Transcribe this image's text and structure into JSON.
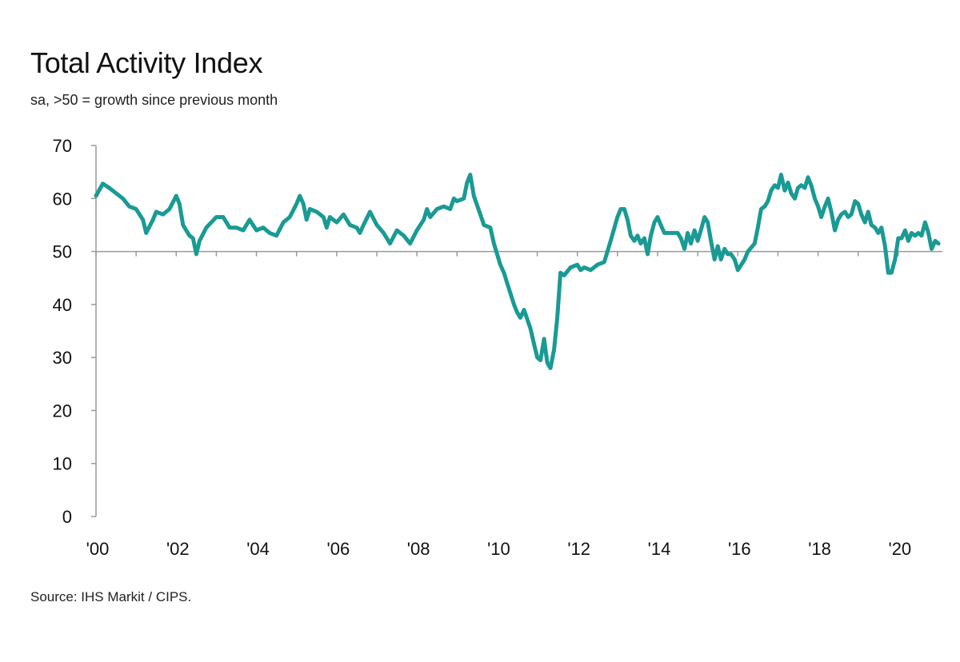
{
  "chart_data": {
    "type": "line",
    "title": "Total Activity Index",
    "subtitle": "sa, >50 = growth since previous month",
    "source": "Source: IHS Markit / CIPS.",
    "xlabel": "",
    "ylabel": "",
    "ylim": [
      0,
      70
    ],
    "xlim": [
      2000.0,
      2021.0
    ],
    "yticks": [
      0,
      10,
      20,
      30,
      40,
      50,
      60,
      70
    ],
    "xtick_values": [
      2000,
      2002,
      2004,
      2006,
      2008,
      2010,
      2012,
      2014,
      2016,
      2018,
      2020
    ],
    "xtick_labels": [
      "'00",
      "'02",
      "'04",
      "'06",
      "'08",
      "'10",
      "'12",
      "'14",
      "'16",
      "'18",
      "'20"
    ],
    "reference_line": 50,
    "grid": false,
    "line_color": "#1a9a94",
    "series": [
      {
        "points": [
          [
            2000.0,
            60.5
          ],
          [
            2000.17,
            62.8
          ],
          [
            2000.33,
            62.0
          ],
          [
            2000.5,
            61.0
          ],
          [
            2000.67,
            60.0
          ],
          [
            2000.83,
            58.5
          ],
          [
            2001.0,
            58.0
          ],
          [
            2001.17,
            56.0
          ],
          [
            2001.25,
            53.5
          ],
          [
            2001.42,
            56.0
          ],
          [
            2001.5,
            57.5
          ],
          [
            2001.67,
            57.0
          ],
          [
            2001.83,
            58.0
          ],
          [
            2002.0,
            60.5
          ],
          [
            2002.08,
            59.0
          ],
          [
            2002.17,
            55.0
          ],
          [
            2002.33,
            53.0
          ],
          [
            2002.42,
            52.5
          ],
          [
            2002.5,
            49.5
          ],
          [
            2002.58,
            52.0
          ],
          [
            2002.75,
            54.5
          ],
          [
            2003.0,
            56.5
          ],
          [
            2003.17,
            56.5
          ],
          [
            2003.33,
            54.5
          ],
          [
            2003.5,
            54.5
          ],
          [
            2003.67,
            54.0
          ],
          [
            2003.83,
            56.0
          ],
          [
            2004.0,
            54.0
          ],
          [
            2004.17,
            54.5
          ],
          [
            2004.33,
            53.5
          ],
          [
            2004.5,
            53.0
          ],
          [
            2004.67,
            55.5
          ],
          [
            2004.83,
            56.5
          ],
          [
            2005.0,
            59.0
          ],
          [
            2005.08,
            60.5
          ],
          [
            2005.17,
            59.0
          ],
          [
            2005.25,
            56.0
          ],
          [
            2005.33,
            58.0
          ],
          [
            2005.5,
            57.5
          ],
          [
            2005.67,
            56.5
          ],
          [
            2005.75,
            54.5
          ],
          [
            2005.83,
            56.5
          ],
          [
            2006.0,
            55.5
          ],
          [
            2006.17,
            57.0
          ],
          [
            2006.33,
            55.0
          ],
          [
            2006.5,
            54.5
          ],
          [
            2006.58,
            53.5
          ],
          [
            2006.67,
            55.0
          ],
          [
            2006.83,
            57.5
          ],
          [
            2007.0,
            55.0
          ],
          [
            2007.17,
            53.5
          ],
          [
            2007.33,
            51.5
          ],
          [
            2007.5,
            54.0
          ],
          [
            2007.67,
            53.0
          ],
          [
            2007.83,
            51.5
          ],
          [
            2008.0,
            54.0
          ],
          [
            2008.17,
            56.0
          ],
          [
            2008.25,
            58.0
          ],
          [
            2008.33,
            56.5
          ],
          [
            2008.5,
            58.0
          ],
          [
            2008.67,
            58.5
          ],
          [
            2008.83,
            58.0
          ],
          [
            2008.92,
            60.0
          ],
          [
            2009.0,
            59.5
          ],
          [
            2009.17,
            60.0
          ],
          [
            2009.25,
            63.0
          ],
          [
            2009.33,
            64.5
          ],
          [
            2009.42,
            60.5
          ],
          [
            2009.58,
            57.0
          ],
          [
            2009.67,
            55.0
          ],
          [
            2009.83,
            54.5
          ],
          [
            2009.92,
            51.5
          ],
          [
            2010.08,
            47.5
          ],
          [
            2010.17,
            46.0
          ],
          [
            2010.25,
            44.0
          ],
          [
            2010.42,
            40.0
          ],
          [
            2010.5,
            38.5
          ],
          [
            2010.58,
            37.5
          ],
          [
            2010.67,
            39.0
          ],
          [
            2010.83,
            35.5
          ],
          [
            2010.92,
            32.5
          ],
          [
            2011.0,
            30.0
          ],
          [
            2011.08,
            29.5
          ],
          [
            2011.17,
            33.5
          ],
          [
            2011.25,
            29.0
          ],
          [
            2011.33,
            28.0
          ],
          [
            2011.42,
            31.5
          ],
          [
            2011.5,
            37.5
          ],
          [
            2011.58,
            46.0
          ],
          [
            2011.67,
            45.5
          ],
          [
            2011.83,
            47.0
          ],
          [
            2012.0,
            47.5
          ],
          [
            2012.08,
            46.5
          ],
          [
            2012.17,
            47.0
          ],
          [
            2012.33,
            46.5
          ],
          [
            2012.5,
            47.5
          ],
          [
            2012.67,
            48.0
          ],
          [
            2012.83,
            52.0
          ],
          [
            2013.0,
            56.5
          ],
          [
            2013.08,
            58.0
          ],
          [
            2013.17,
            58.0
          ],
          [
            2013.25,
            56.0
          ],
          [
            2013.33,
            53.0
          ],
          [
            2013.42,
            52.0
          ],
          [
            2013.5,
            53.0
          ],
          [
            2013.58,
            51.5
          ],
          [
            2013.67,
            52.5
          ],
          [
            2013.75,
            49.5
          ],
          [
            2013.83,
            53.0
          ],
          [
            2013.92,
            55.5
          ],
          [
            2014.0,
            56.5
          ],
          [
            2014.08,
            55.0
          ],
          [
            2014.17,
            53.5
          ],
          [
            2014.33,
            53.5
          ],
          [
            2014.5,
            53.5
          ],
          [
            2014.58,
            52.5
          ],
          [
            2014.67,
            50.5
          ],
          [
            2014.75,
            53.5
          ],
          [
            2014.83,
            51.5
          ],
          [
            2014.92,
            54.0
          ],
          [
            2015.0,
            52.0
          ],
          [
            2015.08,
            54.0
          ],
          [
            2015.17,
            56.5
          ],
          [
            2015.25,
            55.5
          ],
          [
            2015.33,
            52.0
          ],
          [
            2015.42,
            48.5
          ],
          [
            2015.5,
            51.0
          ],
          [
            2015.58,
            48.5
          ],
          [
            2015.67,
            50.5
          ],
          [
            2015.75,
            49.5
          ],
          [
            2015.83,
            49.5
          ],
          [
            2015.92,
            48.5
          ],
          [
            2016.0,
            46.5
          ],
          [
            2016.17,
            48.5
          ],
          [
            2016.25,
            50.0
          ],
          [
            2016.42,
            51.5
          ],
          [
            2016.5,
            54.5
          ],
          [
            2016.58,
            58.0
          ],
          [
            2016.67,
            58.5
          ],
          [
            2016.75,
            59.5
          ],
          [
            2016.83,
            61.5
          ],
          [
            2016.92,
            62.5
          ],
          [
            2017.0,
            62.0
          ],
          [
            2017.08,
            64.5
          ],
          [
            2017.17,
            61.5
          ],
          [
            2017.25,
            63.0
          ],
          [
            2017.33,
            61.0
          ],
          [
            2017.42,
            60.0
          ],
          [
            2017.5,
            62.0
          ],
          [
            2017.58,
            62.5
          ],
          [
            2017.67,
            62.0
          ],
          [
            2017.75,
            64.0
          ],
          [
            2017.83,
            62.5
          ],
          [
            2017.92,
            60.0
          ],
          [
            2018.0,
            58.5
          ],
          [
            2018.08,
            56.5
          ],
          [
            2018.17,
            58.5
          ],
          [
            2018.25,
            60.0
          ],
          [
            2018.33,
            57.5
          ],
          [
            2018.42,
            54.0
          ],
          [
            2018.5,
            56.0
          ],
          [
            2018.58,
            57.0
          ],
          [
            2018.67,
            57.5
          ],
          [
            2018.75,
            56.5
          ],
          [
            2018.83,
            57.0
          ],
          [
            2018.92,
            59.5
          ],
          [
            2019.0,
            59.0
          ],
          [
            2019.08,
            57.0
          ],
          [
            2019.17,
            55.5
          ],
          [
            2019.25,
            57.5
          ],
          [
            2019.33,
            55.0
          ],
          [
            2019.42,
            54.5
          ],
          [
            2019.5,
            53.5
          ],
          [
            2019.58,
            54.5
          ],
          [
            2019.67,
            51.0
          ],
          [
            2019.75,
            46.0
          ],
          [
            2019.83,
            46.0
          ],
          [
            2019.92,
            48.5
          ],
          [
            2020.0,
            52.5
          ],
          [
            2020.08,
            52.5
          ],
          [
            2020.17,
            54.0
          ],
          [
            2020.25,
            52.0
          ],
          [
            2020.33,
            53.5
          ],
          [
            2020.42,
            53.0
          ],
          [
            2020.5,
            53.5
          ],
          [
            2020.58,
            53.0
          ],
          [
            2020.67,
            55.5
          ],
          [
            2020.75,
            53.5
          ],
          [
            2020.83,
            50.5
          ],
          [
            2020.92,
            52.0
          ],
          [
            2021.0,
            51.5
          ]
        ]
      }
    ]
  }
}
